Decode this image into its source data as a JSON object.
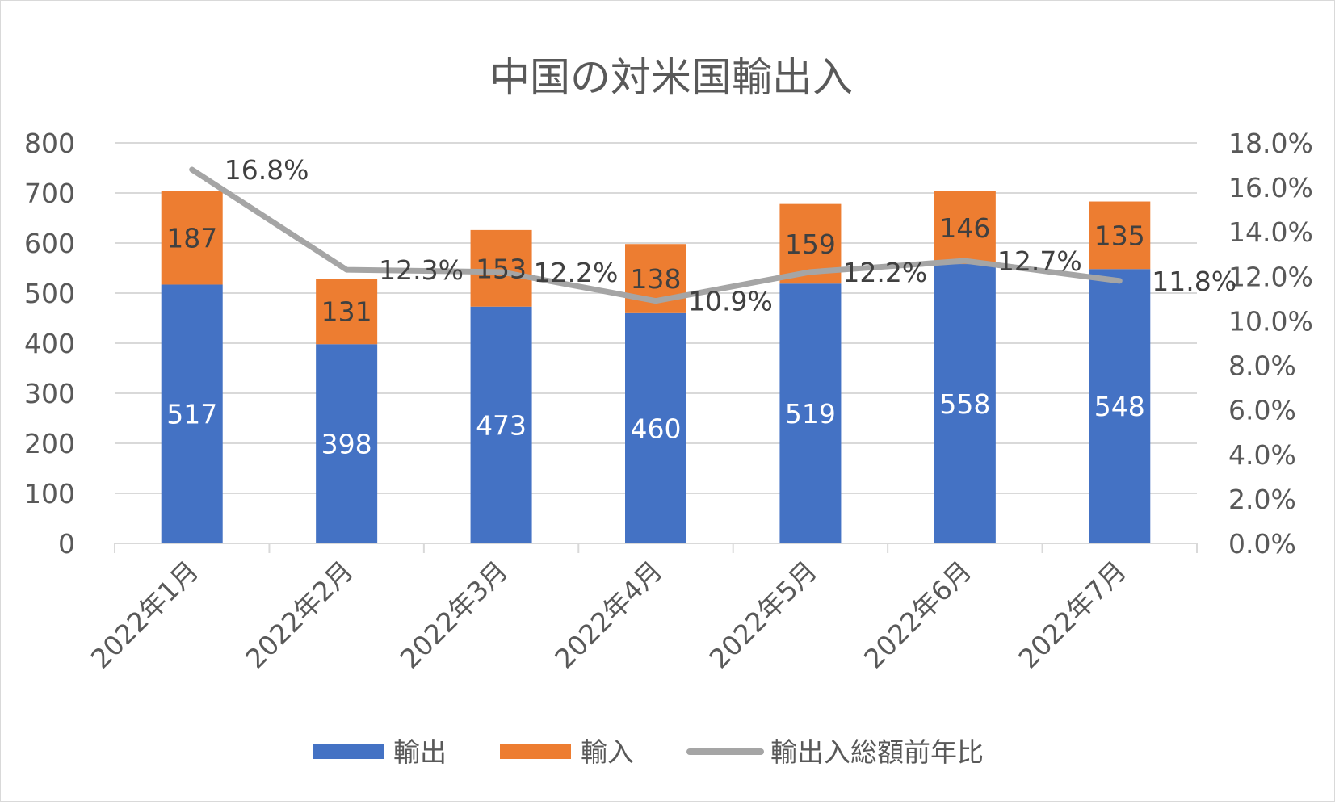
{
  "chart_data": {
    "type": "bar",
    "stacked": true,
    "title": "中国の対米国輸出入",
    "categories": [
      "2022年1月",
      "2022年2月",
      "2022年3月",
      "2022年4月",
      "2022年5月",
      "2022年6月",
      "2022年7月"
    ],
    "series": [
      {
        "name": "輸出",
        "type": "bar",
        "axis": "left",
        "color": "#4472C4",
        "values": [
          517,
          398,
          473,
          460,
          519,
          558,
          548
        ]
      },
      {
        "name": "輸入",
        "type": "bar",
        "axis": "left",
        "color": "#ED7D31",
        "values": [
          187,
          131,
          153,
          138,
          159,
          146,
          135
        ]
      },
      {
        "name": "輸出入総額前年比",
        "type": "line",
        "axis": "right",
        "color": "#A5A5A5",
        "values": [
          16.8,
          12.3,
          12.2,
          10.9,
          12.2,
          12.7,
          11.8
        ]
      }
    ],
    "line_labels": [
      "16.8%",
      "12.3%",
      "12.2%",
      "10.9%",
      "12.2%",
      "12.7%",
      "11.8%"
    ],
    "left_axis": {
      "ylim": [
        0,
        800
      ],
      "ticks": [
        "0",
        "100",
        "200",
        "300",
        "400",
        "500",
        "600",
        "700",
        "800"
      ]
    },
    "right_axis": {
      "ylim": [
        0,
        18
      ],
      "ticks": [
        "0.0%",
        "2.0%",
        "4.0%",
        "6.0%",
        "8.0%",
        "10.0%",
        "12.0%",
        "14.0%",
        "16.0%",
        "18.0%"
      ]
    },
    "grid": true,
    "legend_position": "bottom",
    "colors": {
      "text": "#595959",
      "gridline": "#d9d9d9",
      "bar_label_inner": "#ffffff",
      "bar_label_outer": "#404040"
    }
  }
}
